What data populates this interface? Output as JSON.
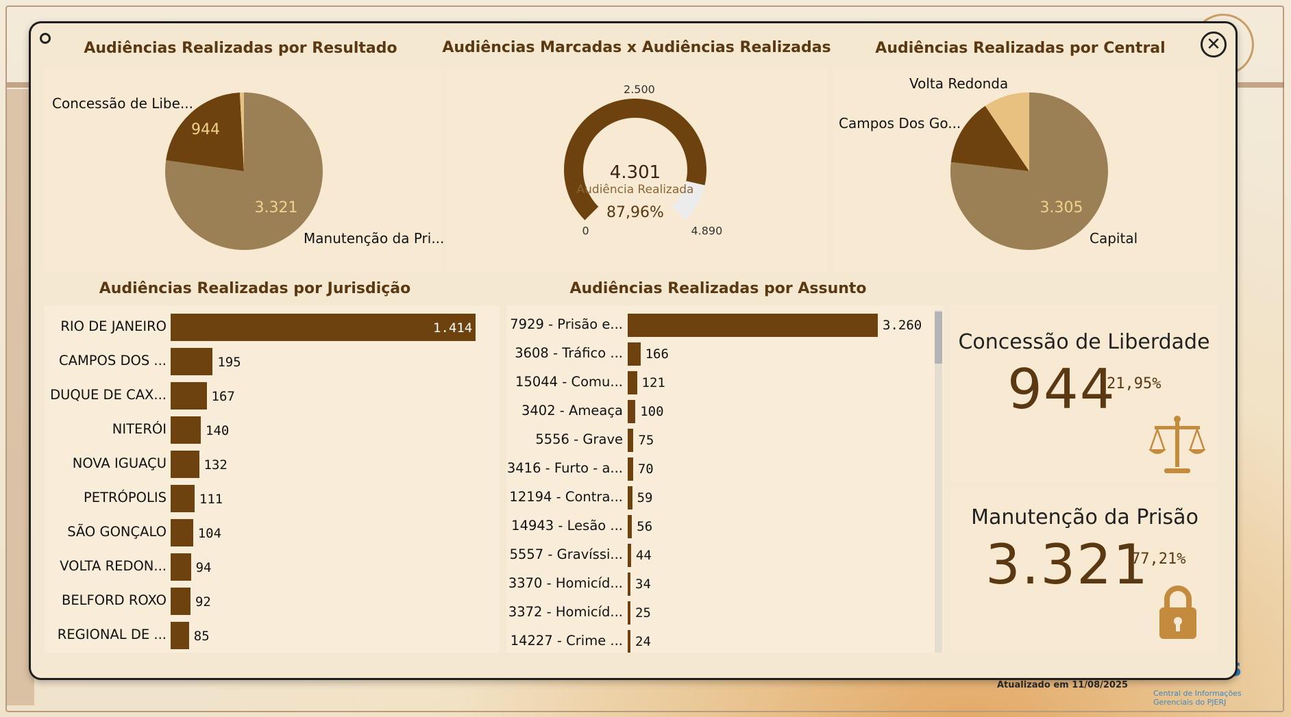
{
  "dashboard": {
    "updated": "Atualizado em 11/08/2025",
    "logo": "iris",
    "logo_sub": "Central de Informações Gerenciais do PJERJ"
  },
  "titles": {
    "resultado": "Audiências Realizadas por Resultado",
    "marcadas": "Audiências Marcadas x Audiências Realizadas",
    "central": "Audiências Realizadas por Central",
    "jurisdicao": "Audiências Realizadas por Jurisdição",
    "assunto": "Audiências Realizadas por Assunto"
  },
  "chart_data": [
    {
      "type": "pie",
      "title": "Audiências Realizadas por Resultado",
      "slices": [
        {
          "label": "Manutenção da Pri...",
          "value": 3321,
          "display": "3.321",
          "color": "#9b8056"
        },
        {
          "label": "Concessão de Libe...",
          "value": 944,
          "display": "944",
          "color": "#6d420f"
        },
        {
          "label": "",
          "value": 36,
          "display": "",
          "color": "#e4c386"
        }
      ]
    },
    {
      "type": "gauge",
      "title": "Audiências Marcadas x Audiências Realizadas",
      "value": 4301,
      "value_display": "4.301",
      "value_label": "Audiência Realizada",
      "min": 0,
      "min_display": "0",
      "max": 4890,
      "max_display": "4.890",
      "target": 2500,
      "target_display": "2.500",
      "percent": "87,96%",
      "fill_color": "#6d420f",
      "rest_color": "#ececec"
    },
    {
      "type": "pie",
      "title": "Audiências Realizadas por Central",
      "slices": [
        {
          "label": "Capital",
          "value": 3305,
          "display": "3.305",
          "color": "#9b8056"
        },
        {
          "label": "Campos Dos Go...",
          "value": 590,
          "display": "",
          "color": "#6d420f"
        },
        {
          "label": "Volta Redonda",
          "value": 406,
          "display": "",
          "color": "#e8c07f"
        }
      ]
    },
    {
      "type": "bar",
      "orientation": "horizontal",
      "title": "Audiências Realizadas por Jurisdição",
      "categories": [
        "RIO DE JANEIRO",
        "CAMPOS DOS ...",
        "DUQUE DE CAX...",
        "NITERÓI",
        "NOVA IGUAÇU",
        "PETRÓPOLIS",
        "SÃO GONÇALO",
        "VOLTA REDON...",
        "BELFORD ROXO",
        "REGIONAL DE ..."
      ],
      "values": [
        1414,
        195,
        167,
        140,
        132,
        111,
        104,
        94,
        92,
        85
      ],
      "labels": [
        "1.414",
        "195",
        "167",
        "140",
        "132",
        "111",
        "104",
        "94",
        "92",
        "85"
      ],
      "xlim": [
        0,
        1414
      ]
    },
    {
      "type": "bar",
      "orientation": "horizontal",
      "title": "Audiências Realizadas por Assunto",
      "categories": [
        "7929 - Prisão e...",
        "3608 - Tráfico ...",
        "15044 - Comu...",
        "3402 - Ameaça",
        "5556 - Grave",
        "3416 - Furto - a...",
        "12194 - Contra...",
        "14943 - Lesão ...",
        "5557 - Gravíssi...",
        "3370 - Homicíd...",
        "3372 - Homicíd...",
        "14227 - Crime ..."
      ],
      "values": [
        3260,
        166,
        121,
        100,
        75,
        70,
        59,
        56,
        44,
        34,
        25,
        24
      ],
      "labels": [
        "3.260",
        "166",
        "121",
        "100",
        "75",
        "70",
        "59",
        "56",
        "44",
        "34",
        "25",
        "24"
      ],
      "xlim": [
        0,
        3260
      ]
    }
  ],
  "kpis": {
    "concessao": {
      "title": "Concessão de Liberdade",
      "value": "944",
      "percent": "21,95%",
      "icon": "scales-icon"
    },
    "manutencao": {
      "title": "Manutenção da Prisão",
      "value": "3.321",
      "percent": "77,21%",
      "icon": "lock-icon"
    }
  },
  "colors": {
    "accent": "#6d420f",
    "title": "#5a3812",
    "panel": "#f8ead2"
  }
}
